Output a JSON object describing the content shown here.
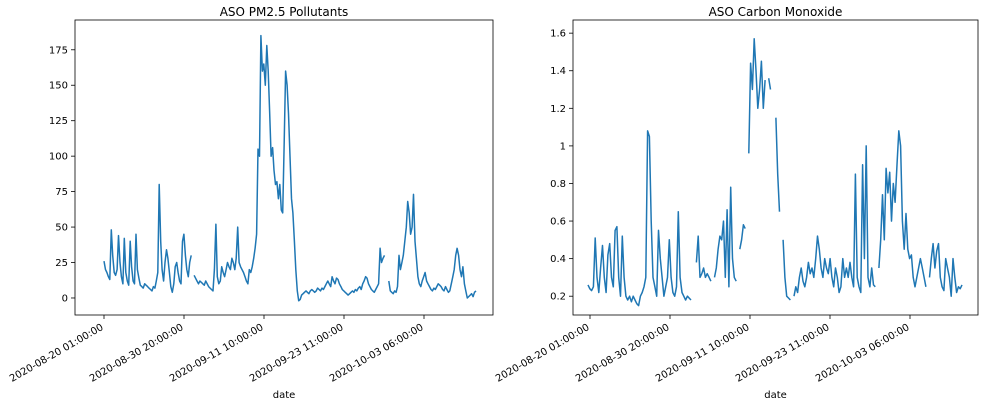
{
  "chart_data": [
    {
      "type": "line",
      "title": "ASO PM2.5 Pollutants",
      "xlabel": "date",
      "ylabel": "",
      "x_tick_labels": [
        "2020-08-20 01:00:00",
        "2020-08-30 20:00:00",
        "2020-09-11 10:00:00",
        "2020-09-23 11:00:00",
        "2020-10-03 06:00:00"
      ],
      "y_ticks": [
        0,
        25,
        50,
        75,
        100,
        125,
        150,
        175
      ],
      "ylim": [
        -12,
        196
      ],
      "grid": false,
      "line_color": "#1f77b4",
      "series": [
        {
          "values": [
            26,
            20,
            18,
            15,
            13,
            48,
            30,
            18,
            16,
            20,
            44,
            25,
            15,
            10,
            42,
            18,
            12,
            9,
            40,
            22,
            12,
            10,
            45,
            20,
            14,
            9,
            8,
            7,
            10,
            9,
            8,
            7,
            6,
            5,
            8,
            7,
            12,
            18,
            80,
            40,
            20,
            12,
            25,
            34,
            28,
            18,
            8,
            4,
            10,
            22,
            25,
            18,
            12,
            10,
            40,
            45,
            30,
            20,
            15,
            25,
            30,
            null,
            16,
            14,
            12,
            10,
            12,
            11,
            10,
            9,
            12,
            10,
            8,
            7,
            6,
            5,
            20,
            52,
            15,
            10,
            12,
            22,
            18,
            15,
            20,
            25,
            22,
            20,
            28,
            25,
            20,
            28,
            50,
            25,
            22,
            20,
            18,
            15,
            12,
            10,
            20,
            18,
            22,
            28,
            35,
            45,
            105,
            100,
            185,
            160,
            165,
            150,
            178,
            160,
            130,
            100,
            106,
            90,
            80,
            82,
            70,
            80,
            62,
            60,
            110,
            160,
            150,
            130,
            100,
            70,
            60,
            40,
            20,
            5,
            -2,
            -1,
            2,
            3,
            4,
            5,
            4,
            3,
            5,
            6,
            5,
            4,
            5,
            7,
            6,
            5,
            7,
            6,
            8,
            10,
            12,
            10,
            8,
            15,
            12,
            10,
            14,
            13,
            10,
            8,
            6,
            5,
            4,
            3,
            2,
            3,
            4,
            5,
            4,
            6,
            5,
            7,
            8,
            6,
            10,
            12,
            15,
            14,
            10,
            8,
            6,
            5,
            4,
            6,
            8,
            10,
            35,
            25,
            28,
            30,
            null,
            null,
            12,
            5,
            4,
            3,
            5,
            4,
            8,
            30,
            20,
            25,
            30,
            40,
            50,
            68,
            60,
            45,
            50,
            73,
            40,
            28,
            15,
            10,
            8,
            12,
            15,
            18,
            12,
            10,
            8,
            6,
            5,
            7,
            6,
            8,
            10,
            9,
            8,
            6,
            5,
            8,
            6,
            4,
            5,
            10,
            15,
            20,
            30,
            35,
            30,
            20,
            15,
            22,
            10,
            5,
            0,
            1,
            2,
            3,
            1,
            4,
            5
          ]
        }
      ]
    },
    {
      "type": "line",
      "title": "ASO Carbon Monoxide",
      "xlabel": "date",
      "ylabel": "",
      "x_tick_labels": [
        "2020-08-20 01:00:00",
        "2020-08-30 20:00:00",
        "2020-09-11 10:00:00",
        "2020-09-23 11:00:00",
        "2020-10-03 06:00:00"
      ],
      "y_ticks": [
        0.2,
        0.4,
        0.6,
        0.8,
        1.0,
        1.2,
        1.4,
        1.6
      ],
      "ylim": [
        0.1,
        1.67
      ],
      "grid": false,
      "line_color": "#1f77b4",
      "series": [
        {
          "values": [
            0.26,
            0.24,
            0.23,
            0.25,
            0.51,
            0.3,
            0.22,
            0.35,
            0.47,
            0.3,
            0.22,
            0.42,
            0.48,
            0.3,
            0.25,
            0.55,
            0.57,
            0.3,
            0.2,
            0.52,
            0.3,
            0.2,
            0.18,
            0.2,
            0.17,
            0.2,
            0.18,
            0.16,
            0.15,
            0.2,
            0.22,
            0.25,
            0.3,
            1.08,
            1.05,
            0.6,
            0.3,
            0.25,
            0.2,
            0.55,
            0.4,
            0.3,
            0.2,
            0.25,
            0.3,
            0.5,
            0.3,
            0.22,
            0.2,
            0.25,
            0.65,
            0.3,
            0.22,
            0.2,
            0.18,
            0.2,
            0.19,
            0.18,
            null,
            null,
            0.38,
            0.52,
            0.3,
            0.32,
            0.35,
            0.3,
            0.32,
            0.3,
            0.28,
            null,
            0.3,
            0.35,
            0.45,
            0.52,
            0.5,
            0.6,
            0.3,
            0.66,
            0.25,
            0.78,
            0.4,
            0.3,
            0.28,
            null,
            0.45,
            0.5,
            0.58,
            0.56,
            null,
            0.96,
            1.44,
            1.3,
            1.57,
            1.4,
            1.2,
            1.3,
            1.45,
            1.2,
            1.35,
            null,
            1.36,
            1.3,
            null,
            null,
            1.15,
            0.85,
            0.65,
            null,
            0.5,
            0.3,
            0.2,
            0.19,
            0.18,
            null,
            0.2,
            0.25,
            0.22,
            0.3,
            0.35,
            0.28,
            0.25,
            0.3,
            0.38,
            0.32,
            0.35,
            0.3,
            0.4,
            0.52,
            0.45,
            0.35,
            0.3,
            0.4,
            0.35,
            0.32,
            0.4,
            0.3,
            0.25,
            0.35,
            0.3,
            0.22,
            0.25,
            0.4,
            0.3,
            0.35,
            0.3,
            0.38,
            0.3,
            0.25,
            0.85,
            0.3,
            0.25,
            0.22,
            0.9,
            0.4,
            1.0,
            0.3,
            0.25,
            0.35,
            0.26,
            0.25,
            null,
            0.35,
            0.5,
            0.74,
            0.5,
            0.88,
            0.75,
            0.86,
            0.6,
            0.8,
            0.7,
            0.9,
            1.08,
            1.0,
            0.6,
            0.45,
            0.64,
            0.45,
            0.4,
            0.42,
            0.3,
            0.25,
            0.3,
            0.35,
            0.4,
            0.35,
            0.3,
            0.25,
            null,
            0.3,
            0.4,
            0.48,
            0.35,
            0.44,
            0.48,
            0.3,
            0.25,
            0.23,
            0.4,
            0.35,
            0.3,
            0.2,
            0.4,
            0.3,
            0.22,
            0.25,
            0.24,
            0.26
          ]
        }
      ]
    }
  ]
}
